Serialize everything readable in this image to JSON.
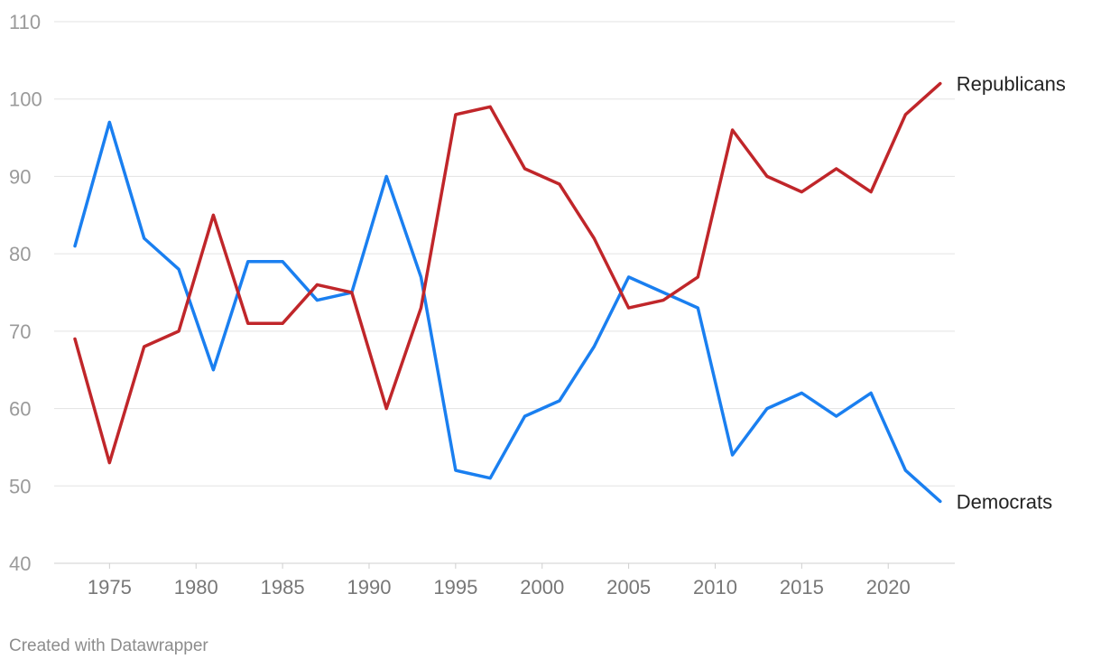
{
  "chart_data": {
    "type": "line",
    "x": [
      1973,
      1975,
      1977,
      1979,
      1981,
      1983,
      1985,
      1987,
      1989,
      1991,
      1993,
      1995,
      1997,
      1999,
      2001,
      2003,
      2005,
      2007,
      2009,
      2011,
      2013,
      2015,
      2017,
      2019,
      2021,
      2023
    ],
    "series": [
      {
        "name": "Democrats",
        "color": "#1a7ff0",
        "values": [
          81,
          97,
          82,
          78,
          65,
          79,
          79,
          74,
          75,
          90,
          77,
          52,
          51,
          59,
          61,
          68,
          77,
          75,
          73,
          54,
          60,
          62,
          59,
          62,
          52,
          48
        ]
      },
      {
        "name": "Republicans",
        "color": "#c0262a",
        "values": [
          69,
          53,
          68,
          70,
          85,
          71,
          71,
          76,
          75,
          60,
          73,
          98,
          99,
          91,
          89,
          82,
          73,
          74,
          77,
          96,
          90,
          88,
          91,
          88,
          98,
          102
        ]
      }
    ],
    "ylim": [
      40,
      110
    ],
    "yticks": [
      40,
      50,
      60,
      70,
      80,
      90,
      100,
      110
    ],
    "xticks": [
      1975,
      1980,
      1985,
      1990,
      1995,
      2000,
      2005,
      2010,
      2015,
      2020
    ],
    "grid": true,
    "legend": "inline-right"
  },
  "footer": "Created with Datawrapper"
}
